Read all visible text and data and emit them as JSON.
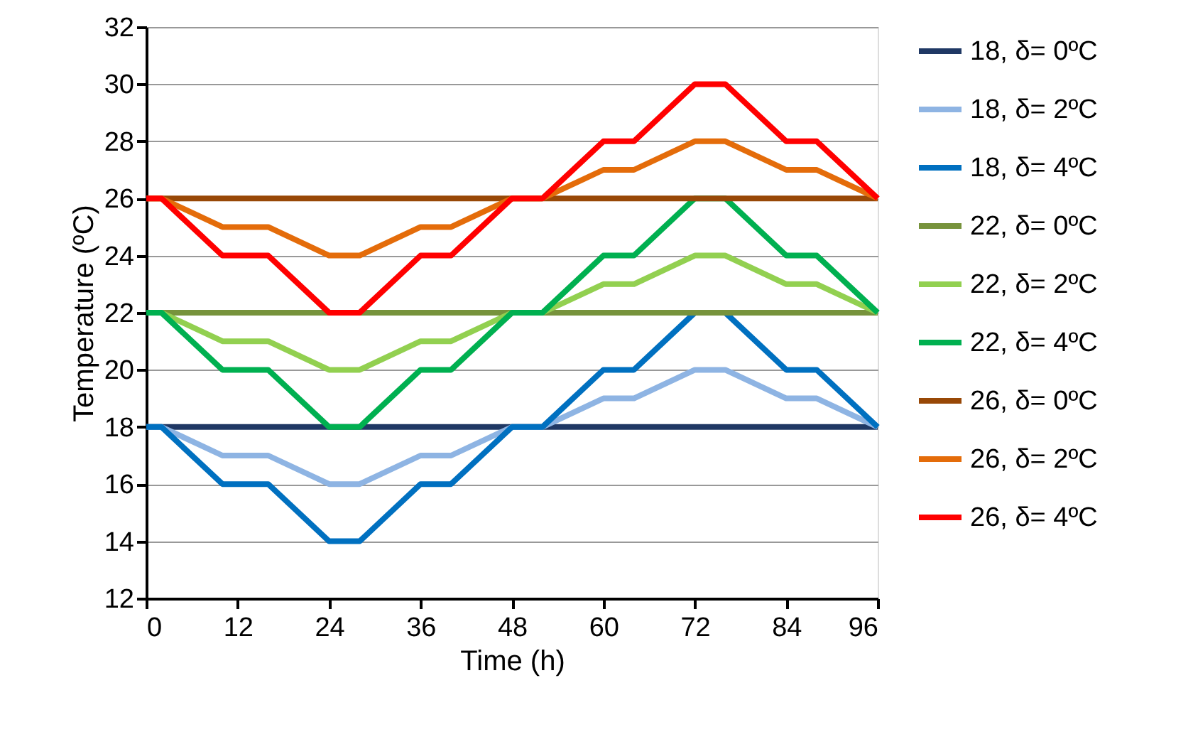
{
  "chart_data": {
    "type": "line",
    "xlabel": "Time (h)",
    "ylabel": "Temperature (ºC)",
    "x": [
      0,
      2,
      10,
      16,
      24,
      28,
      36,
      40,
      48,
      52,
      60,
      64,
      72,
      76,
      84,
      88,
      96
    ],
    "series": [
      {
        "name": "18, δ= 0ºC",
        "color": "#1f3864",
        "values": [
          18,
          18,
          18,
          18,
          18,
          18,
          18,
          18,
          18,
          18,
          18,
          18,
          18,
          18,
          18,
          18,
          18
        ]
      },
      {
        "name": "18, δ= 2ºC",
        "color": "#8eb4e3",
        "values": [
          18,
          18,
          17,
          17,
          16,
          16,
          17,
          17,
          18,
          18,
          19,
          19,
          20,
          20,
          19,
          19,
          18
        ]
      },
      {
        "name": "18, δ= 4ºC",
        "color": "#0070c0",
        "values": [
          18,
          18,
          16,
          16,
          14,
          14,
          16,
          16,
          18,
          18,
          20,
          20,
          22,
          22,
          20,
          20,
          18
        ]
      },
      {
        "name": "22, δ= 0ºC",
        "color": "#77933c",
        "values": [
          22,
          22,
          22,
          22,
          22,
          22,
          22,
          22,
          22,
          22,
          22,
          22,
          22,
          22,
          22,
          22,
          22
        ]
      },
      {
        "name": "22, δ= 2ºC",
        "color": "#92d050",
        "values": [
          22,
          22,
          21,
          21,
          20,
          20,
          21,
          21,
          22,
          22,
          23,
          23,
          24,
          24,
          23,
          23,
          22
        ]
      },
      {
        "name": "22, δ= 4ºC",
        "color": "#00b050",
        "values": [
          22,
          22,
          20,
          20,
          18,
          18,
          20,
          20,
          22,
          22,
          24,
          24,
          26,
          26,
          24,
          24,
          22
        ]
      },
      {
        "name": "26, δ= 0ºC",
        "color": "#984807",
        "values": [
          26,
          26,
          26,
          26,
          26,
          26,
          26,
          26,
          26,
          26,
          26,
          26,
          26,
          26,
          26,
          26,
          26
        ]
      },
      {
        "name": "26, δ= 2ºC",
        "color": "#e46c0a",
        "values": [
          26,
          26,
          25,
          25,
          24,
          24,
          25,
          25,
          26,
          26,
          27,
          27,
          28,
          28,
          27,
          27,
          26
        ]
      },
      {
        "name": "26, δ= 4ºC",
        "color": "#ff0000",
        "values": [
          26,
          26,
          24,
          24,
          22,
          22,
          24,
          24,
          26,
          26,
          28,
          28,
          30,
          30,
          28,
          28,
          26
        ]
      }
    ],
    "xlim": [
      0,
      96
    ],
    "xticks": [
      0,
      12,
      24,
      36,
      48,
      60,
      72,
      84,
      96
    ],
    "ylim": [
      12,
      32
    ],
    "yticks": [
      12,
      14,
      16,
      18,
      20,
      22,
      24,
      26,
      28,
      30,
      32
    ],
    "grid": "y",
    "legend": "right",
    "marker": "none",
    "line_style": "solid"
  }
}
